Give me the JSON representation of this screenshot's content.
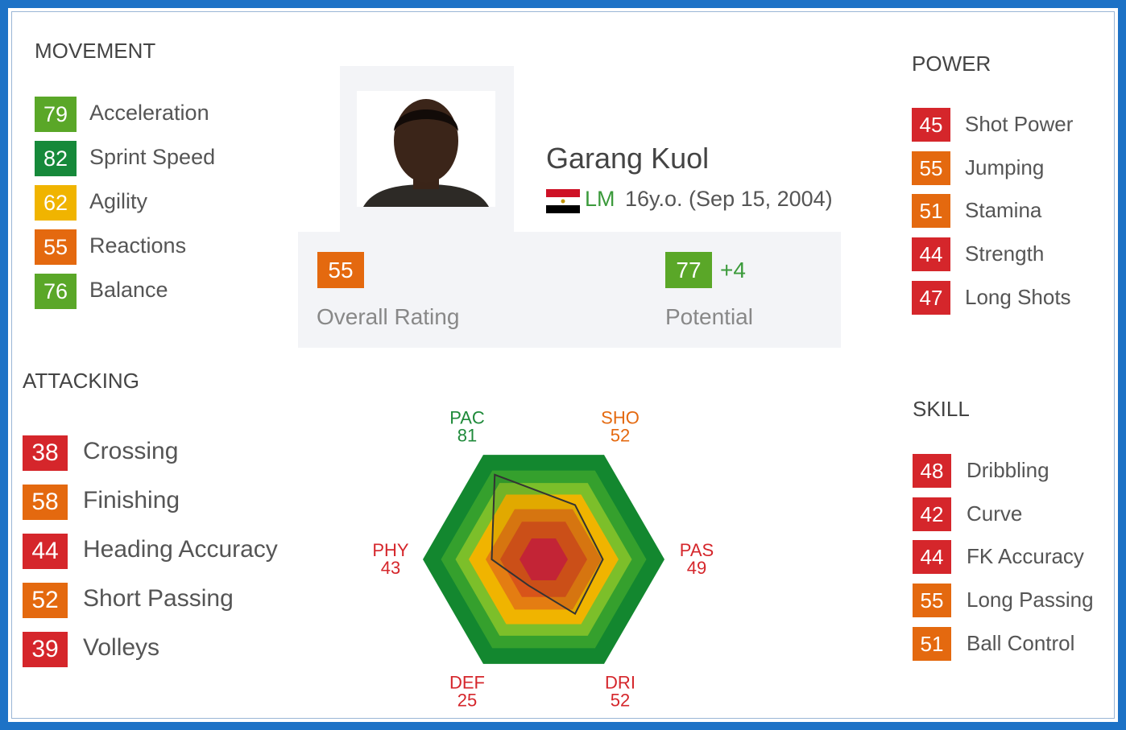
{
  "movement": {
    "title": "MOVEMENT",
    "stats": [
      {
        "value": 79,
        "label": "Acceleration",
        "color": "#5aa728"
      },
      {
        "value": 82,
        "label": "Sprint Speed",
        "color": "#16893a"
      },
      {
        "value": 62,
        "label": "Agility",
        "color": "#f0b400"
      },
      {
        "value": 55,
        "label": "Reactions",
        "color": "#e4690f"
      },
      {
        "value": 76,
        "label": "Balance",
        "color": "#5aa728"
      }
    ]
  },
  "player": {
    "name": "Garang Kuol",
    "position": "LM",
    "info": "16y.o. (Sep 15, 2004)"
  },
  "overall": {
    "value": 55,
    "label": "Overall Rating",
    "color": "#e4690f"
  },
  "potential": {
    "value": 77,
    "change": "+4",
    "label": "Potential",
    "color": "#5aa728"
  },
  "power": {
    "title": "POWER",
    "stats": [
      {
        "value": 45,
        "label": "Shot Power",
        "color": "#d5262b"
      },
      {
        "value": 55,
        "label": "Jumping",
        "color": "#e4690f"
      },
      {
        "value": 51,
        "label": "Stamina",
        "color": "#e4690f"
      },
      {
        "value": 44,
        "label": "Strength",
        "color": "#d5262b"
      },
      {
        "value": 47,
        "label": "Long Shots",
        "color": "#d5262b"
      }
    ]
  },
  "attacking": {
    "title": "ATTACKING",
    "stats": [
      {
        "value": 38,
        "label": "Crossing",
        "color": "#d5262b"
      },
      {
        "value": 58,
        "label": "Finishing",
        "color": "#e4690f"
      },
      {
        "value": 44,
        "label": "Heading Accuracy",
        "color": "#d5262b"
      },
      {
        "value": 52,
        "label": "Short Passing",
        "color": "#e4690f"
      },
      {
        "value": 39,
        "label": "Volleys",
        "color": "#d5262b"
      }
    ]
  },
  "skill": {
    "title": "SKILL",
    "stats": [
      {
        "value": 48,
        "label": "Dribbling",
        "color": "#d5262b"
      },
      {
        "value": 42,
        "label": "Curve",
        "color": "#d5262b"
      },
      {
        "value": 44,
        "label": "FK Accuracy",
        "color": "#d5262b"
      },
      {
        "value": 55,
        "label": "Long Passing",
        "color": "#e4690f"
      },
      {
        "value": 51,
        "label": "Ball Control",
        "color": "#e4690f"
      }
    ]
  },
  "chart_data": {
    "type": "radar",
    "categories": [
      "PAC",
      "SHO",
      "PAS",
      "DRI",
      "DEF",
      "PHY"
    ],
    "values": [
      81,
      52,
      49,
      52,
      25,
      43
    ],
    "label_colors": [
      "#1f8a3a",
      "#e4690f",
      "#d5262b",
      "#d5262b",
      "#d5262b",
      "#d5262b"
    ],
    "rlim": [
      0,
      100
    ]
  }
}
